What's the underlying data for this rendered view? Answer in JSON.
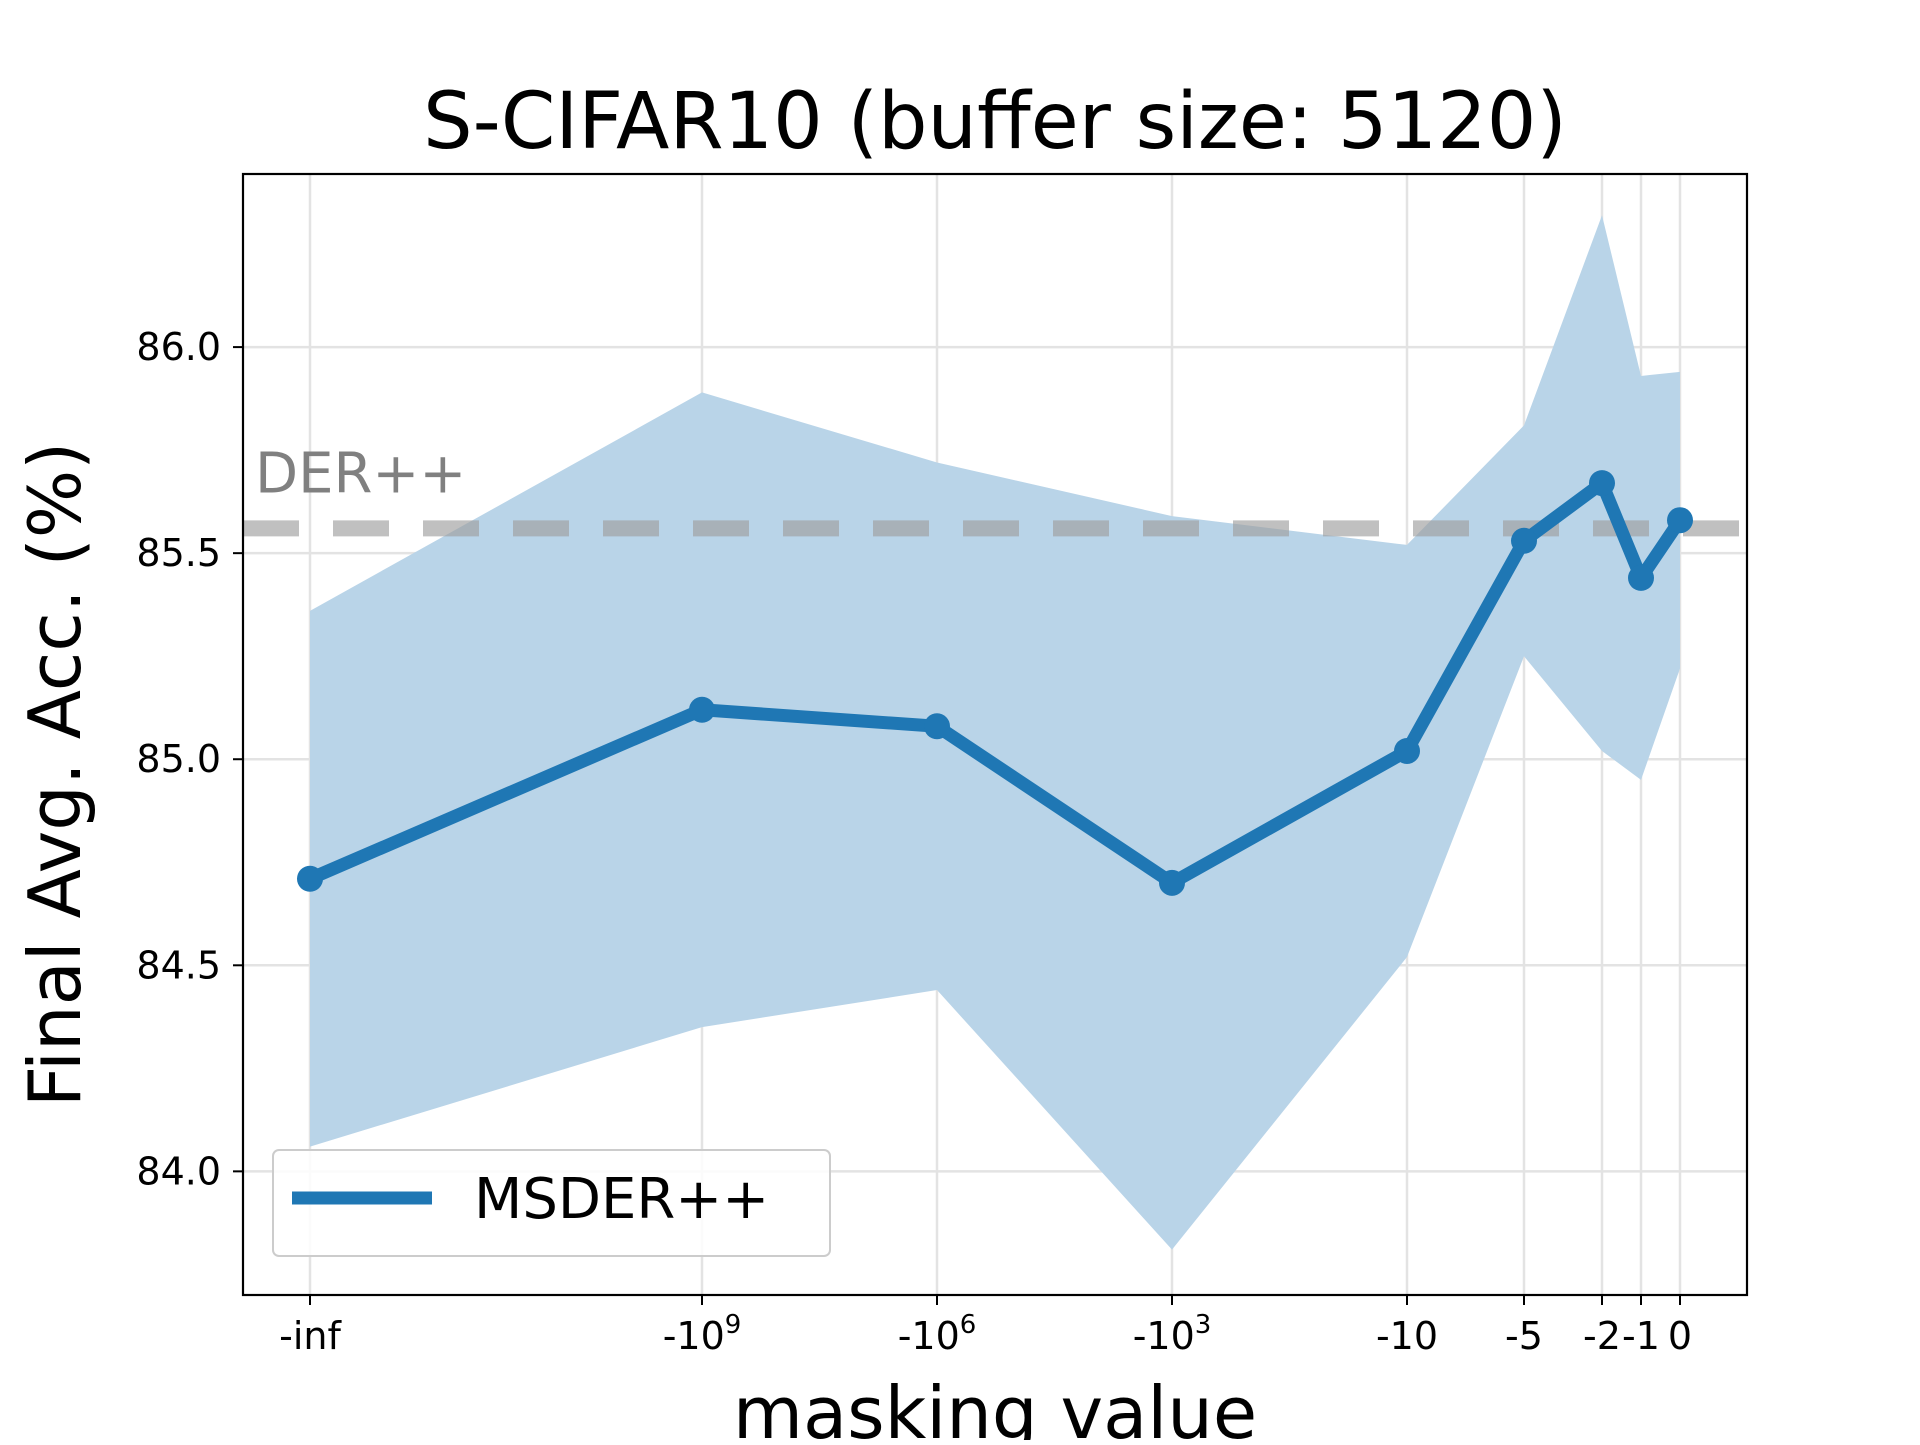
{
  "chart_data": {
    "type": "line",
    "title": "S-CIFAR10 (buffer size: 5120)",
    "xlabel": "masking value",
    "ylabel": "Final Avg. Acc. (%)",
    "x_scale": "symmetric-log (categorical positions)",
    "categories": [
      "-inf",
      "-10^9",
      "-10^6",
      "-10^3",
      "-10",
      "-5",
      "-2",
      "-1",
      "0"
    ],
    "x_tick_labels": [
      {
        "base": "-inf",
        "sup": ""
      },
      {
        "base": "-10",
        "sup": "9"
      },
      {
        "base": "-10",
        "sup": "6"
      },
      {
        "base": "-10",
        "sup": "3"
      },
      {
        "base": "-10",
        "sup": ""
      },
      {
        "base": "-5",
        "sup": ""
      },
      {
        "base": "-2",
        "sup": ""
      },
      {
        "base": "-1",
        "sup": ""
      },
      {
        "base": "0",
        "sup": ""
      }
    ],
    "ylim": [
      83.7,
      86.42
    ],
    "y_ticks": [
      "84.0",
      "84.5",
      "85.0",
      "85.5",
      "86.0"
    ],
    "grid": true,
    "legend_position": "lower-left",
    "series": [
      {
        "name": "MSDER++",
        "color": "#1f77b4",
        "values": [
          84.71,
          85.12,
          85.08,
          84.7,
          85.02,
          85.53,
          85.67,
          85.44,
          85.58
        ],
        "band_upper": [
          85.36,
          85.89,
          85.72,
          85.59,
          85.52,
          85.81,
          86.32,
          85.93,
          85.94
        ],
        "band_lower": [
          84.06,
          84.35,
          84.44,
          83.81,
          84.52,
          85.25,
          85.02,
          84.95,
          85.22
        ],
        "band_color": "#b9d4e8"
      }
    ],
    "reference_line": {
      "label": "DER++",
      "value": 85.56,
      "color": "#9e9e9e",
      "style": "dashed"
    }
  }
}
